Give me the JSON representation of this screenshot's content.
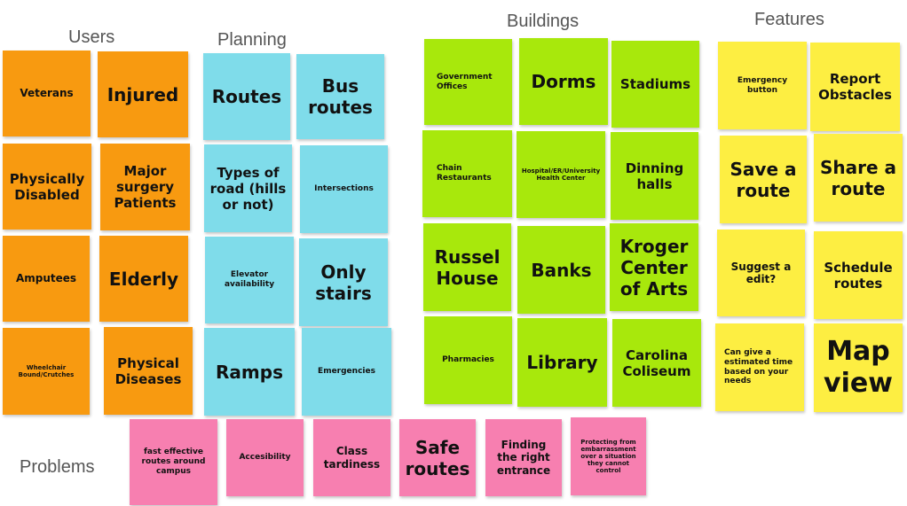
{
  "headings": {
    "users": "Users",
    "planning": "Planning",
    "buildings": "Buildings",
    "features": "Features",
    "problems": "Problems"
  },
  "users": [
    "Veterans",
    "Injured",
    "Physically Disabled",
    "Major surgery Patients",
    "Amputees",
    "Elderly",
    "Wheelchair Bound/Crutches",
    "Physical Diseases"
  ],
  "planning": [
    "Routes",
    "Bus routes",
    "Types of road (hills or not)",
    "Intersections",
    "Elevator availability",
    "Only stairs",
    "Ramps",
    "Emergencies"
  ],
  "buildings": [
    "Government Offices",
    "Dorms",
    "Stadiums",
    "Chain Restaurants",
    "Hospital/ER/University Health Center",
    "Dinning halls",
    "Russel House",
    "Banks",
    "Kroger Center of Arts",
    "Pharmacies",
    "Library",
    "Carolina Coliseum"
  ],
  "features": [
    "Emergency button",
    "Report Obstacles",
    "Save a route",
    "Share a route",
    "Suggest a edit?",
    "Schedule routes",
    "Can give a estimated time based on your needs",
    "Map view"
  ],
  "problems": [
    "fast effective routes around campus",
    "Accesibility",
    "Class tardiness",
    "Safe routes",
    "Finding the right entrance",
    "Protecting from embarrassment over a situation they cannot control"
  ],
  "colors": {
    "users": "#f89a10",
    "planning": "#7fdcea",
    "buildings": "#a8e80c",
    "features": "#fdee42",
    "problems": "#f77fb0"
  }
}
